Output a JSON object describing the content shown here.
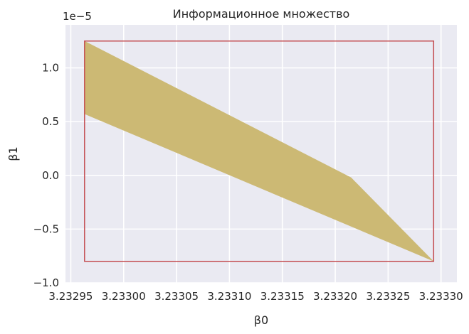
{
  "chart_data": {
    "type": "area",
    "title": "Информационное множество",
    "xlabel": "β0",
    "ylabel": "β1",
    "y_offset_label": "1e−5",
    "xlim": [
      3.232945,
      3.233315
    ],
    "ylim": [
      -1.0,
      1.4
    ],
    "y_scale_exponent": -5,
    "x_ticks": [
      3.23295,
      3.233,
      3.23305,
      3.2331,
      3.23315,
      3.2332,
      3.23325,
      3.2333
    ],
    "x_tick_labels": [
      "3.23295",
      "3.23300",
      "3.23305",
      "3.23310",
      "3.23315",
      "3.23320",
      "3.23325",
      "3.23330"
    ],
    "y_ticks": [
      -1.0,
      -0.5,
      0.0,
      0.5,
      1.0
    ],
    "y_tick_labels": [
      "−1.0",
      "−0.5",
      "0.0",
      "0.5",
      "1.0"
    ],
    "grid": true,
    "legend": "none",
    "series": [
      {
        "kind": "polygon",
        "color": "#ccb974",
        "points": [
          [
            3.232963,
            1.25
          ],
          [
            3.233215,
            -0.02
          ],
          [
            3.233293,
            -0.8
          ],
          [
            3.232963,
            0.57
          ]
        ]
      },
      {
        "kind": "rectangle",
        "color": "#c44e52",
        "points": [
          [
            3.232963,
            -0.8
          ],
          [
            3.233293,
            -0.8
          ],
          [
            3.233293,
            1.25
          ],
          [
            3.232963,
            1.25
          ]
        ]
      }
    ],
    "colors": {
      "background": "#eaeaf2",
      "grid": "#ffffff",
      "polygon": "#ccb974",
      "rectangle": "#c44e52",
      "text": "#262626"
    }
  }
}
